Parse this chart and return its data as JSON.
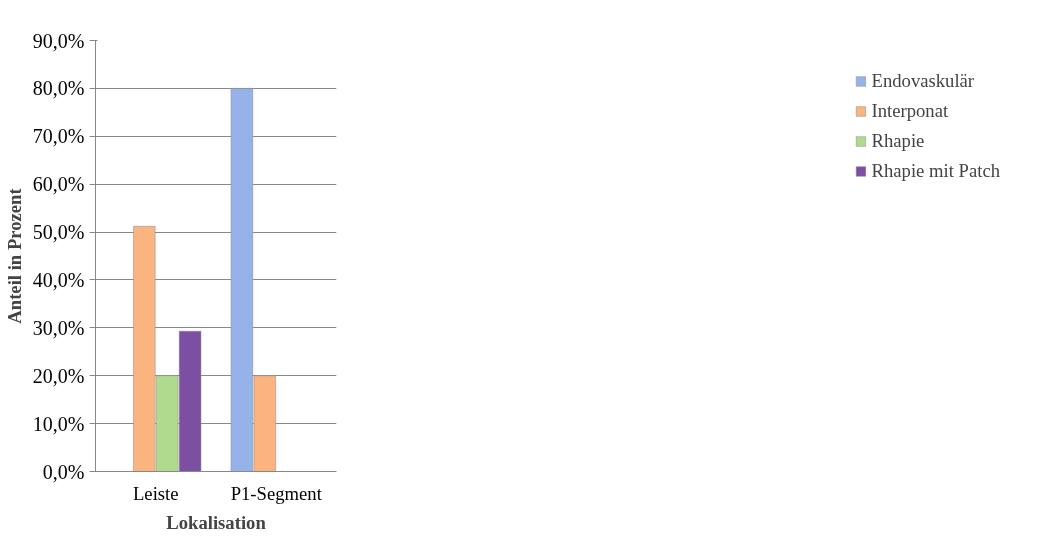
{
  "chart_data": {
    "type": "bar",
    "xlabel": "Lokalisation",
    "ylabel": "Anteil in Prozent",
    "categories": [
      "Leiste",
      "P1-Segment"
    ],
    "series": [
      {
        "name": "Endovaskulär",
        "color": "#95b3e8",
        "values": [
          null,
          80.0
        ]
      },
      {
        "name": "Interponat",
        "color": "#fbb47f",
        "values": [
          51.2,
          20.0
        ]
      },
      {
        "name": "Rhapie",
        "color": "#b0db8f",
        "values": [
          20.0,
          null
        ]
      },
      {
        "name": "Rhapie mit Patch",
        "color": "#7d4fa3",
        "values": [
          29.3,
          null
        ]
      }
    ],
    "ylim": [
      0,
      90
    ],
    "yticks": [
      {
        "value": 0,
        "label": "0,0%"
      },
      {
        "value": 10,
        "label": "10,0%"
      },
      {
        "value": 20,
        "label": "20,0%"
      },
      {
        "value": 30,
        "label": "30,0%"
      },
      {
        "value": 40,
        "label": "40,0%"
      },
      {
        "value": 50,
        "label": "50,0%"
      },
      {
        "value": 60,
        "label": "60,0%"
      },
      {
        "value": 70,
        "label": "70,0%"
      },
      {
        "value": 80,
        "label": "80,0%"
      },
      {
        "value": 90,
        "label": "90,0%"
      }
    ],
    "grid": "y",
    "legend": "right"
  }
}
